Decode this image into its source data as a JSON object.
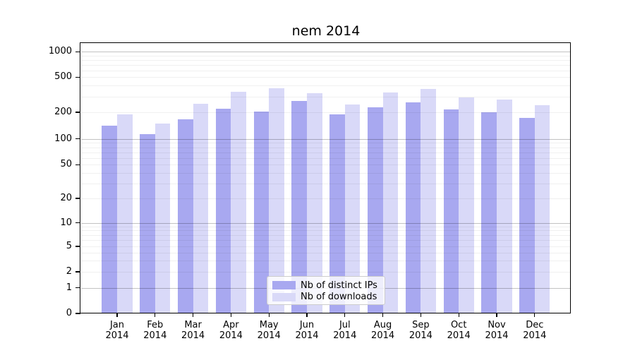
{
  "title": "nem 2014",
  "chart_data": {
    "type": "bar",
    "title": "nem 2014",
    "categories": [
      "Jan",
      "Feb",
      "Mar",
      "Apr",
      "May",
      "Jun",
      "Jul",
      "Aug",
      "Sep",
      "Oct",
      "Nov",
      "Dec"
    ],
    "category_year": "2014",
    "series": [
      {
        "name": "Nb of distinct IPs",
        "color": "#a8a8f0",
        "values": [
          140,
          113,
          167,
          219,
          203,
          267,
          188,
          227,
          258,
          214,
          200,
          174
        ]
      },
      {
        "name": "Nb of downloads",
        "color": "#d9d9f8",
        "values": [
          190,
          148,
          250,
          340,
          375,
          332,
          246,
          336,
          371,
          293,
          278,
          239
        ]
      }
    ],
    "yscale": "symlog",
    "y_ticks": [
      1000,
      500,
      200,
      100,
      50,
      20,
      10,
      5,
      2,
      1,
      0
    ],
    "ylim": [
      0,
      1200
    ],
    "xlabel": "",
    "ylabel": "",
    "grid": true,
    "legend_position": "lower-center"
  },
  "colors": {
    "background": "#ffffff",
    "axis": "#000000",
    "text": "#000000",
    "grid_major": "#c4c4c4",
    "grid_minor": "#f0f0f0",
    "legend_border": "#cccccc"
  }
}
